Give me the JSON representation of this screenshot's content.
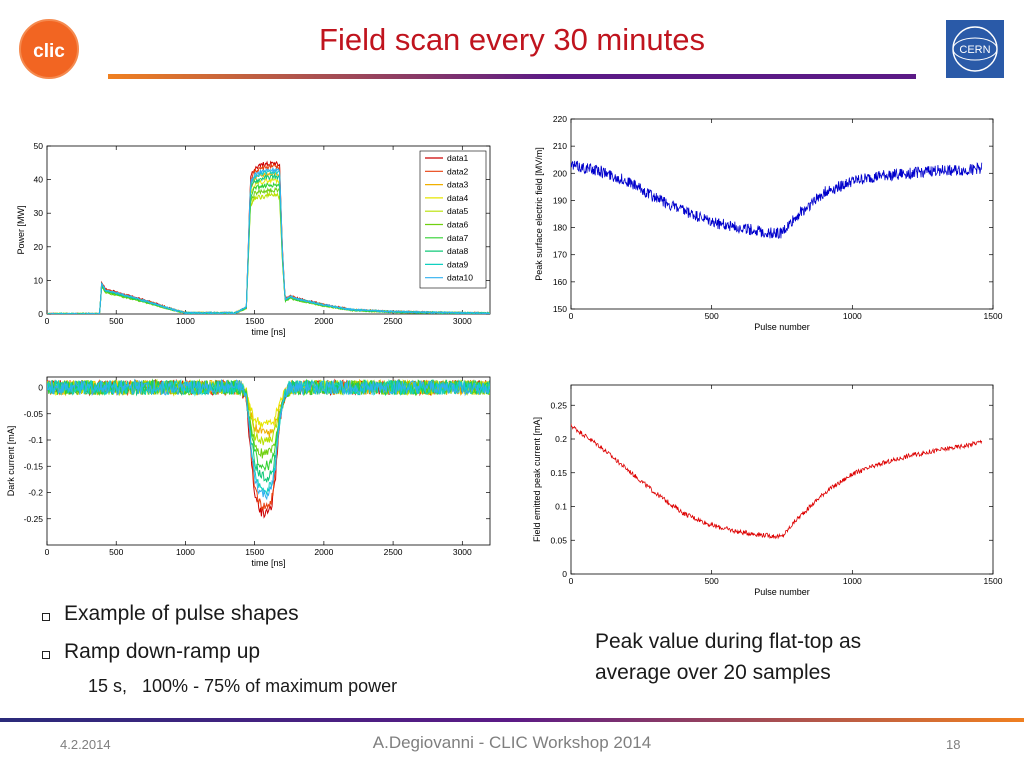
{
  "slide": {
    "title": "Field scan every 30 minutes",
    "bullets": [
      "Example of pulse shapes",
      "Ramp down-ramp up"
    ],
    "sub_bullet": "15 s,   100% - 75% of maximum power",
    "note": "Peak value during flat-top as average over 20 samples",
    "footer": {
      "date": "4.2.2014",
      "center": "A.Degiovanni - CLIC Workshop 2014",
      "page": "18"
    },
    "logos": {
      "left": "clic",
      "right": "CERN"
    },
    "colors": {
      "title": "#c0141e",
      "rule_start": "#5b1a86",
      "rule_end": "#f08020",
      "footer_rule_start": "#2a2a7a"
    }
  },
  "chart_data": [
    {
      "type": "line",
      "xlabel": "time [ns]",
      "ylabel": "Power [MW]",
      "xlim": [
        0,
        3200
      ],
      "ylim": [
        0,
        50
      ],
      "xticks": [
        0,
        500,
        1000,
        1500,
        2000,
        2500,
        3000
      ],
      "yticks": [
        0,
        10,
        20,
        30,
        40,
        50
      ],
      "legend_position": "top-right",
      "x": [
        0,
        380,
        395,
        420,
        600,
        750,
        880,
        1000,
        1360,
        1440,
        1470,
        1500,
        1560,
        1640,
        1680,
        1700,
        1720,
        1760,
        1800,
        2000,
        2200,
        2500,
        3000,
        3200
      ],
      "series": [
        {
          "name": "data1",
          "color": "#cc0000",
          "values": [
            0,
            0,
            9.5,
            7.5,
            5.4,
            3.6,
            1.8,
            0.3,
            0.3,
            2.0,
            40.5,
            43.5,
            44.5,
            45.0,
            44.5,
            20.0,
            4.5,
            5.4,
            4.8,
            2.8,
            1.3,
            0.7,
            0.3,
            0.2
          ]
        },
        {
          "name": "data2",
          "color": "#e8400f",
          "values": [
            0,
            0,
            9.3,
            7.3,
            5.3,
            3.5,
            1.7,
            0.3,
            0.3,
            2.0,
            39.5,
            42.5,
            43.5,
            44.0,
            43.5,
            19.5,
            4.4,
            5.3,
            4.7,
            2.7,
            1.3,
            0.7,
            0.3,
            0.2
          ]
        },
        {
          "name": "data3",
          "color": "#f0b000",
          "values": [
            0,
            0,
            9.0,
            7.0,
            5.0,
            3.3,
            1.6,
            0.3,
            0.3,
            1.9,
            37.5,
            40.5,
            41.5,
            42.0,
            41.5,
            18.5,
            4.2,
            5.1,
            4.5,
            2.6,
            1.2,
            0.6,
            0.3,
            0.2
          ]
        },
        {
          "name": "data4",
          "color": "#e6e600",
          "values": [
            0,
            0,
            8.8,
            6.8,
            4.9,
            3.2,
            1.6,
            0.3,
            0.3,
            1.8,
            35.5,
            38.5,
            39.5,
            40.0,
            39.5,
            17.5,
            4.1,
            5.0,
            4.4,
            2.5,
            1.2,
            0.6,
            0.3,
            0.2
          ]
        },
        {
          "name": "data5",
          "color": "#b8e000",
          "values": [
            0,
            0,
            8.5,
            6.6,
            4.8,
            3.1,
            1.5,
            0.3,
            0.3,
            1.7,
            32.5,
            34.5,
            35.0,
            35.5,
            35.0,
            16.0,
            3.9,
            4.8,
            4.2,
            2.4,
            1.1,
            0.6,
            0.3,
            0.2
          ]
        },
        {
          "name": "data6",
          "color": "#70d010",
          "values": [
            0,
            0,
            8.3,
            6.4,
            4.6,
            3.0,
            1.5,
            0.3,
            0.3,
            1.7,
            33.5,
            36.0,
            36.5,
            37.0,
            36.5,
            16.5,
            3.8,
            4.7,
            4.1,
            2.4,
            1.1,
            0.6,
            0.3,
            0.2
          ]
        },
        {
          "name": "data7",
          "color": "#30d030",
          "values": [
            0,
            0,
            8.6,
            6.7,
            4.8,
            3.1,
            1.6,
            0.3,
            0.3,
            1.8,
            35.0,
            37.5,
            38.0,
            38.5,
            38.0,
            17.0,
            4.0,
            4.9,
            4.3,
            2.5,
            1.2,
            0.6,
            0.3,
            0.2
          ]
        },
        {
          "name": "data8",
          "color": "#10c878",
          "values": [
            0,
            0,
            8.9,
            6.9,
            5.0,
            3.3,
            1.6,
            0.3,
            0.3,
            1.9,
            37.0,
            39.5,
            40.5,
            41.0,
            40.5,
            18.0,
            4.2,
            5.1,
            4.5,
            2.6,
            1.2,
            0.6,
            0.3,
            0.2
          ]
        },
        {
          "name": "data9",
          "color": "#10d0c0",
          "values": [
            0,
            0,
            9.1,
            7.1,
            5.1,
            3.4,
            1.7,
            0.3,
            0.3,
            2.0,
            38.5,
            41.0,
            42.0,
            42.5,
            42.0,
            18.8,
            4.3,
            5.2,
            4.6,
            2.7,
            1.3,
            0.7,
            0.3,
            0.2
          ]
        },
        {
          "name": "data10",
          "color": "#30b0f0",
          "values": [
            0,
            0,
            9.2,
            7.2,
            5.2,
            3.4,
            1.7,
            0.3,
            0.3,
            2.0,
            39.0,
            41.5,
            42.5,
            43.0,
            42.5,
            19.2,
            4.4,
            5.2,
            4.6,
            2.7,
            1.3,
            0.7,
            0.3,
            0.2
          ]
        }
      ]
    },
    {
      "type": "line",
      "xlabel": "time [ns]",
      "ylabel": "Dark current [mA]",
      "xlim": [
        0,
        3200
      ],
      "ylim": [
        -0.3,
        0.02
      ],
      "xticks": [
        0,
        500,
        1000,
        1500,
        2000,
        2500,
        3000
      ],
      "yticks": [
        0,
        -0.05,
        -0.1,
        -0.15,
        -0.2,
        -0.25
      ],
      "ytick_labels": [
        "0",
        "-0.05",
        "-0.1",
        "-0.15",
        "-0.2",
        "-0.25"
      ],
      "x": [
        0,
        1400,
        1440,
        1470,
        1500,
        1540,
        1580,
        1620,
        1650,
        1680,
        1720,
        1760,
        3200
      ],
      "series": [
        {
          "name": "data1",
          "color": "#cc0000",
          "values": [
            0,
            0,
            -0.02,
            -0.12,
            -0.2,
            -0.235,
            -0.24,
            -0.23,
            -0.17,
            -0.07,
            -0.015,
            0,
            0
          ]
        },
        {
          "name": "data2",
          "color": "#e8400f",
          "values": [
            0,
            0,
            -0.02,
            -0.11,
            -0.19,
            -0.225,
            -0.23,
            -0.22,
            -0.16,
            -0.065,
            -0.015,
            0,
            0
          ]
        },
        {
          "name": "data3",
          "color": "#f0b000",
          "values": [
            0,
            0,
            -0.015,
            -0.05,
            -0.075,
            -0.085,
            -0.088,
            -0.085,
            -0.07,
            -0.04,
            -0.01,
            0,
            0
          ]
        },
        {
          "name": "data4",
          "color": "#e6e600",
          "values": [
            0,
            0,
            -0.01,
            -0.04,
            -0.06,
            -0.068,
            -0.07,
            -0.068,
            -0.055,
            -0.03,
            -0.008,
            0,
            0
          ]
        },
        {
          "name": "data5",
          "color": "#b8e000",
          "values": [
            0,
            0,
            -0.012,
            -0.055,
            -0.09,
            -0.1,
            -0.104,
            -0.1,
            -0.08,
            -0.045,
            -0.01,
            0,
            0
          ]
        },
        {
          "name": "data6",
          "color": "#70d010",
          "values": [
            0,
            0,
            -0.014,
            -0.07,
            -0.11,
            -0.125,
            -0.128,
            -0.124,
            -0.1,
            -0.05,
            -0.012,
            0,
            0
          ]
        },
        {
          "name": "data7",
          "color": "#30d030",
          "values": [
            0,
            0,
            -0.015,
            -0.08,
            -0.125,
            -0.145,
            -0.15,
            -0.145,
            -0.115,
            -0.055,
            -0.012,
            0,
            0
          ]
        },
        {
          "name": "data8",
          "color": "#10c878",
          "values": [
            0,
            0,
            -0.016,
            -0.09,
            -0.145,
            -0.168,
            -0.172,
            -0.165,
            -0.13,
            -0.06,
            -0.013,
            0,
            0
          ]
        },
        {
          "name": "data9",
          "color": "#10d0c0",
          "values": [
            0,
            0,
            -0.017,
            -0.1,
            -0.165,
            -0.19,
            -0.195,
            -0.188,
            -0.145,
            -0.062,
            -0.013,
            0,
            0
          ]
        },
        {
          "name": "data10",
          "color": "#30b0f0",
          "values": [
            0,
            0,
            -0.018,
            -0.105,
            -0.175,
            -0.2,
            -0.205,
            -0.196,
            -0.152,
            -0.064,
            -0.014,
            0,
            0
          ]
        }
      ]
    },
    {
      "type": "line",
      "xlabel": "Pulse number",
      "ylabel": "Peak surface electric field [MV/m]",
      "xlim": [
        0,
        1500
      ],
      "ylim": [
        150,
        220
      ],
      "xticks": [
        0,
        500,
        1000,
        1500
      ],
      "yticks": [
        150,
        160,
        170,
        180,
        190,
        200,
        210,
        220
      ],
      "series": [
        {
          "color": "#0000cc",
          "x": [
            0,
            100,
            200,
            300,
            400,
            500,
            600,
            700,
            750,
            800,
            900,
            1000,
            1100,
            1200,
            1300,
            1400,
            1460
          ],
          "values": [
            203,
            201,
            197,
            191,
            186,
            182,
            180,
            178,
            178,
            184,
            193,
            197,
            199,
            200,
            201,
            201,
            202
          ]
        }
      ]
    },
    {
      "type": "line",
      "xlabel": "Pulse number",
      "ylabel": "Field emitted peak current [mA]",
      "xlim": [
        0,
        1500
      ],
      "ylim": [
        0,
        0.28
      ],
      "xticks": [
        0,
        500,
        1000,
        1500
      ],
      "yticks": [
        0,
        0.05,
        0.1,
        0.15,
        0.2,
        0.25
      ],
      "ytick_labels": [
        "0",
        "0.05",
        "0.1",
        "0.15",
        "0.2",
        "0.25"
      ],
      "series": [
        {
          "color": "#dd0000",
          "x": [
            0,
            100,
            200,
            300,
            400,
            500,
            600,
            700,
            750,
            800,
            900,
            1000,
            1100,
            1200,
            1300,
            1400,
            1460
          ],
          "values": [
            0.22,
            0.19,
            0.155,
            0.12,
            0.09,
            0.072,
            0.062,
            0.057,
            0.055,
            0.08,
            0.12,
            0.148,
            0.163,
            0.175,
            0.183,
            0.19,
            0.196
          ]
        }
      ]
    }
  ]
}
